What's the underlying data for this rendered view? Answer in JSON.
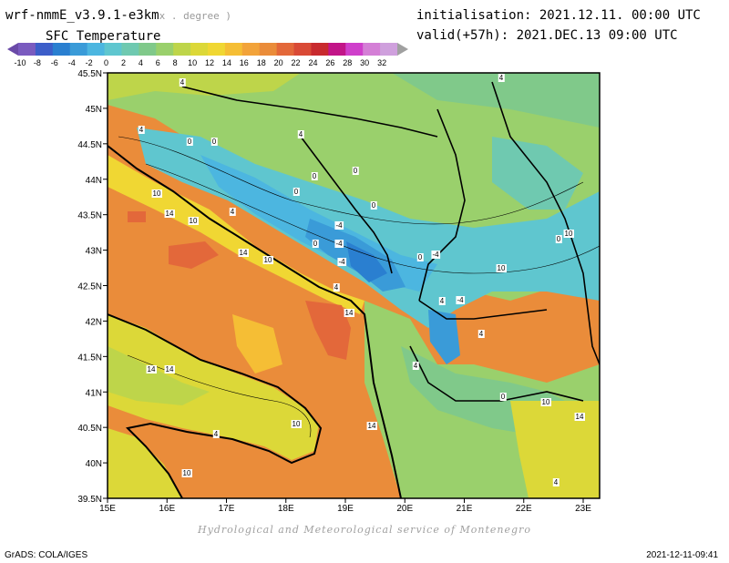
{
  "header": {
    "model": "wrf-nmmE_v3.9.1-e3km",
    "resolution_note": "x . degree )",
    "field": "SFC Temperature",
    "init": "initialisation: 2021.12.11. 00:00 UTC",
    "valid": "valid(+57h): 2021.DEC.13 09:00 UTC"
  },
  "colorbar": {
    "labels": [
      "-10",
      "-8",
      "-6",
      "-4",
      "-2",
      "0",
      "2",
      "4",
      "6",
      "8",
      "10",
      "12",
      "14",
      "16",
      "18",
      "20",
      "22",
      "24",
      "26",
      "28",
      "30",
      "32"
    ],
    "colors": [
      "#7a5bbf",
      "#3c5ec9",
      "#2a7fd0",
      "#3a9bd8",
      "#4cb6e0",
      "#5fc6cf",
      "#6fc9b0",
      "#80c98a",
      "#9ad06c",
      "#bed54a",
      "#dcd838",
      "#f0d733",
      "#f5be35",
      "#f2a33a",
      "#ea8c3a",
      "#e3683a",
      "#d94a36",
      "#c82a2e",
      "#c21588",
      "#cf3fcb",
      "#d47fd6",
      "#cfa0dd"
    ]
  },
  "map": {
    "lat_labels": [
      "45.5N",
      "45N",
      "44.5N",
      "44N",
      "43.5N",
      "43N",
      "42.5N",
      "42N",
      "41.5N",
      "41N",
      "40.5N",
      "40N",
      "39.5N"
    ],
    "lon_labels": [
      "15E",
      "16E",
      "17E",
      "18E",
      "19E",
      "20E",
      "21E",
      "22E",
      "23E"
    ],
    "contour_labels": [
      "4",
      "4",
      "4",
      "4",
      "0",
      "0",
      "0",
      "0",
      "0",
      "0",
      "4",
      "10",
      "14",
      "10",
      "14",
      "-4",
      "-4",
      "-4",
      "0",
      "0",
      "-4",
      "-4",
      "10",
      "4",
      "4",
      "4",
      "4",
      "14",
      "14",
      "10",
      "10",
      "4",
      "0",
      "10",
      "14",
      "14",
      "10",
      "14",
      "4",
      "0",
      "10"
    ]
  },
  "footer": {
    "credit": "Hydrological and Meteorological service of Montenegro",
    "software": "GrADS: COLA/IGES",
    "timestamp": "2021-12-11-09:41"
  }
}
